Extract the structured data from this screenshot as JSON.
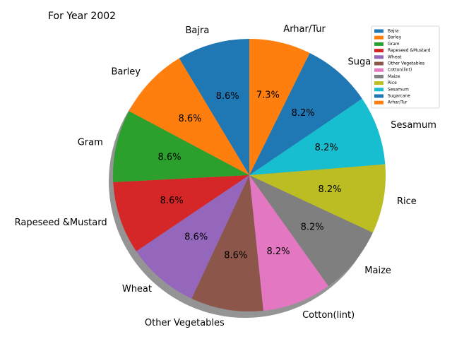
{
  "chart_data": {
    "type": "pie",
    "title": "For Year 2002",
    "start_angle_deg": 90,
    "direction": "counterclockwise",
    "shadow": true,
    "legend_position": "top-right",
    "slices": [
      {
        "label": "Bajra",
        "pct_label": "8.6%",
        "value": 8.6,
        "color": "#1f77b4"
      },
      {
        "label": "Barley",
        "pct_label": "8.6%",
        "value": 8.6,
        "color": "#ff7f0e"
      },
      {
        "label": "Gram",
        "pct_label": "8.6%",
        "value": 8.6,
        "color": "#2ca02c"
      },
      {
        "label": "Rapeseed &Mustard",
        "pct_label": "8.6%",
        "value": 8.6,
        "color": "#d62728"
      },
      {
        "label": "Wheat",
        "pct_label": "8.6%",
        "value": 8.6,
        "color": "#9467bd"
      },
      {
        "label": "Other Vegetables",
        "pct_label": "8.6%",
        "value": 8.6,
        "color": "#8c564b"
      },
      {
        "label": "Cotton(lint)",
        "pct_label": "8.2%",
        "value": 8.2,
        "color": "#e377c2"
      },
      {
        "label": "Maize",
        "pct_label": "8.2%",
        "value": 8.2,
        "color": "#7f7f7f"
      },
      {
        "label": "Rice",
        "pct_label": "8.2%",
        "value": 8.2,
        "color": "#bcbd22"
      },
      {
        "label": "Sesamum",
        "pct_label": "8.2%",
        "value": 8.2,
        "color": "#17becf"
      },
      {
        "label": "Sugarcane",
        "pct_label": "8.2%",
        "value": 8.2,
        "color": "#1f77b4"
      },
      {
        "label": "Arhar/Tur",
        "pct_label": "7.3%",
        "value": 7.3,
        "color": "#ff7f0e"
      }
    ]
  }
}
